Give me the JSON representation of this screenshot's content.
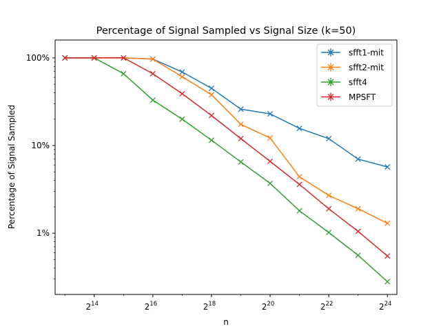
{
  "chart_data": {
    "type": "line",
    "title": "Percentage of Signal Sampled vs Signal Size (k=50)",
    "xlabel": "n",
    "ylabel": "Percentage of Signal Sampled",
    "xscale": "log2",
    "yscale": "log",
    "x": [
      8192,
      16384,
      32768,
      65536,
      131072,
      262144,
      524288,
      1048576,
      2097152,
      4194304,
      8388608,
      16777216
    ],
    "xlim": [
      6500,
      21000000
    ],
    "ylim": [
      0.2,
      160
    ],
    "xticks": [
      {
        "value": 16384,
        "base": "2",
        "exp": "14"
      },
      {
        "value": 65536,
        "base": "2",
        "exp": "16"
      },
      {
        "value": 262144,
        "base": "2",
        "exp": "18"
      },
      {
        "value": 1048576,
        "base": "2",
        "exp": "20"
      },
      {
        "value": 4194304,
        "base": "2",
        "exp": "22"
      },
      {
        "value": 16777216,
        "base": "2",
        "exp": "24"
      }
    ],
    "yticks": [
      {
        "value": 1,
        "label": "1%"
      },
      {
        "value": 10,
        "label": "10%"
      },
      {
        "value": 100,
        "label": "100%"
      }
    ],
    "legend_position": "top-right",
    "series": [
      {
        "name": "sfft1-mit",
        "color": "#1f77b4",
        "marker": "x",
        "values": [
          100,
          100,
          100,
          97,
          69,
          45,
          26,
          23,
          15.7,
          12,
          7,
          5.7
        ]
      },
      {
        "name": "sfft2-mit",
        "color": "#ff7f0e",
        "marker": "x",
        "values": [
          100,
          100,
          100,
          97,
          61,
          38,
          17.5,
          12.2,
          4.4,
          2.7,
          1.9,
          1.3
        ]
      },
      {
        "name": "sfft4",
        "color": "#2ca02c",
        "marker": "x",
        "values": [
          100,
          100,
          66,
          33,
          20,
          11.5,
          6.5,
          3.7,
          1.8,
          1.02,
          0.56,
          0.28
        ]
      },
      {
        "name": "MPSFT",
        "color": "#d62728",
        "marker": "x",
        "values": [
          100,
          100,
          100,
          66,
          39,
          22,
          12,
          6.6,
          3.6,
          1.9,
          1.05,
          0.55
        ]
      }
    ]
  }
}
